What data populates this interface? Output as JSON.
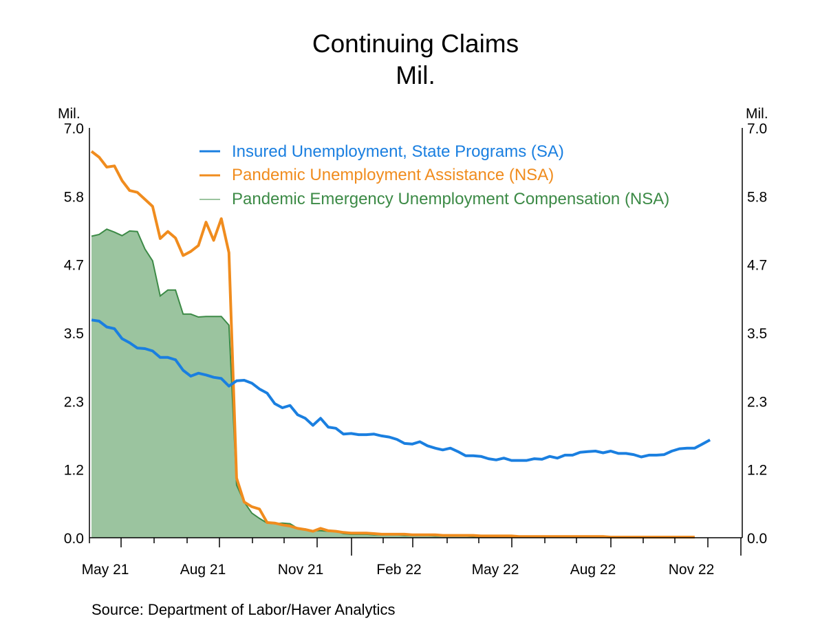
{
  "chart_data": {
    "type": "line",
    "title": "Continuing Claims",
    "subtitle": "Mil.",
    "ylabel_left": "Mil.",
    "ylabel_right": "Mil.",
    "ylim": [
      0.0,
      7.0
    ],
    "yticks": [
      "0.0",
      "1.2",
      "2.3",
      "3.5",
      "4.7",
      "5.8",
      "7.0"
    ],
    "ytick_values": [
      0.0,
      1.167,
      2.333,
      3.5,
      4.667,
      5.833,
      7.0
    ],
    "xticks": [
      "May 21",
      "Aug 21",
      "Nov 21",
      "Feb 22",
      "May 22",
      "Aug 22",
      "Nov 22"
    ],
    "x_frequency": "weekly",
    "x_start": "May 21 (late April/early May 2021)",
    "x_end": "Nov 22",
    "grid": false,
    "legend_position": "top-center",
    "source": "Source:  Department of Labor/Haver Analytics",
    "series": [
      {
        "name": "Insured Unemployment, State Programs (SA)",
        "style": "line",
        "color": "#1a7fe0",
        "values": [
          3.72,
          3.7,
          3.6,
          3.57,
          3.4,
          3.33,
          3.24,
          3.23,
          3.19,
          3.08,
          3.08,
          3.04,
          2.86,
          2.76,
          2.81,
          2.78,
          2.74,
          2.72,
          2.59,
          2.68,
          2.69,
          2.64,
          2.54,
          2.47,
          2.29,
          2.22,
          2.26,
          2.1,
          2.04,
          1.92,
          2.04,
          1.89,
          1.87,
          1.77,
          1.78,
          1.76,
          1.76,
          1.77,
          1.74,
          1.72,
          1.68,
          1.61,
          1.6,
          1.64,
          1.57,
          1.53,
          1.5,
          1.53,
          1.47,
          1.4,
          1.4,
          1.39,
          1.35,
          1.33,
          1.36,
          1.32,
          1.32,
          1.32,
          1.35,
          1.34,
          1.39,
          1.36,
          1.41,
          1.41,
          1.46,
          1.47,
          1.48,
          1.45,
          1.48,
          1.44,
          1.44,
          1.42,
          1.38,
          1.41,
          1.41,
          1.42,
          1.48,
          1.52,
          1.53,
          1.53,
          1.6,
          1.67
        ]
      },
      {
        "name": "Pandemic Unemployment Assistance (NSA)",
        "style": "line",
        "color": "#f08c1e",
        "values": [
          6.6,
          6.5,
          6.33,
          6.35,
          6.1,
          5.93,
          5.9,
          5.78,
          5.66,
          5.11,
          5.23,
          5.12,
          4.82,
          4.89,
          4.99,
          5.39,
          5.08,
          5.45,
          4.87,
          1.02,
          0.61,
          0.53,
          0.49,
          0.26,
          0.25,
          0.22,
          0.2,
          0.16,
          0.14,
          0.11,
          0.16,
          0.12,
          0.11,
          0.09,
          0.08,
          0.08,
          0.08,
          0.07,
          0.06,
          0.06,
          0.06,
          0.06,
          0.05,
          0.05,
          0.05,
          0.05,
          0.04,
          0.04,
          0.04,
          0.04,
          0.04,
          0.03,
          0.03,
          0.03,
          0.03,
          0.03,
          0.02,
          0.02,
          0.02,
          0.02,
          0.02,
          0.02,
          0.02,
          0.02,
          0.02,
          0.02,
          0.02,
          0.02,
          0.01,
          0.01,
          0.01,
          0.01,
          0.01,
          0.01,
          0.01,
          0.01,
          0.01,
          0.01,
          0.01,
          0.01
        ]
      },
      {
        "name": "Pandemic Emergency Unemployment Compensation (NSA)",
        "style": "area",
        "color": "#3c8a46",
        "fill": "#9bc49f",
        "values": [
          5.15,
          5.18,
          5.27,
          5.22,
          5.16,
          5.24,
          5.23,
          4.93,
          4.73,
          4.13,
          4.23,
          4.23,
          3.82,
          3.82,
          3.77,
          3.78,
          3.78,
          3.78,
          3.63,
          0.9,
          0.61,
          0.42,
          0.33,
          0.25,
          0.24,
          0.25,
          0.24,
          0.16,
          0.15,
          0.12,
          0.12,
          0.11,
          0.11,
          0.07,
          0.06,
          0.06,
          0.06,
          0.05,
          0.05,
          0.05,
          0.05,
          0.04,
          0.04,
          0.04,
          0.04,
          0.03,
          0.03,
          0.03,
          0.03,
          0.03,
          0.02,
          0.02,
          0.02,
          0.02,
          0.02,
          0.02,
          0.02,
          0.01,
          0.01,
          0.01
        ]
      }
    ]
  }
}
